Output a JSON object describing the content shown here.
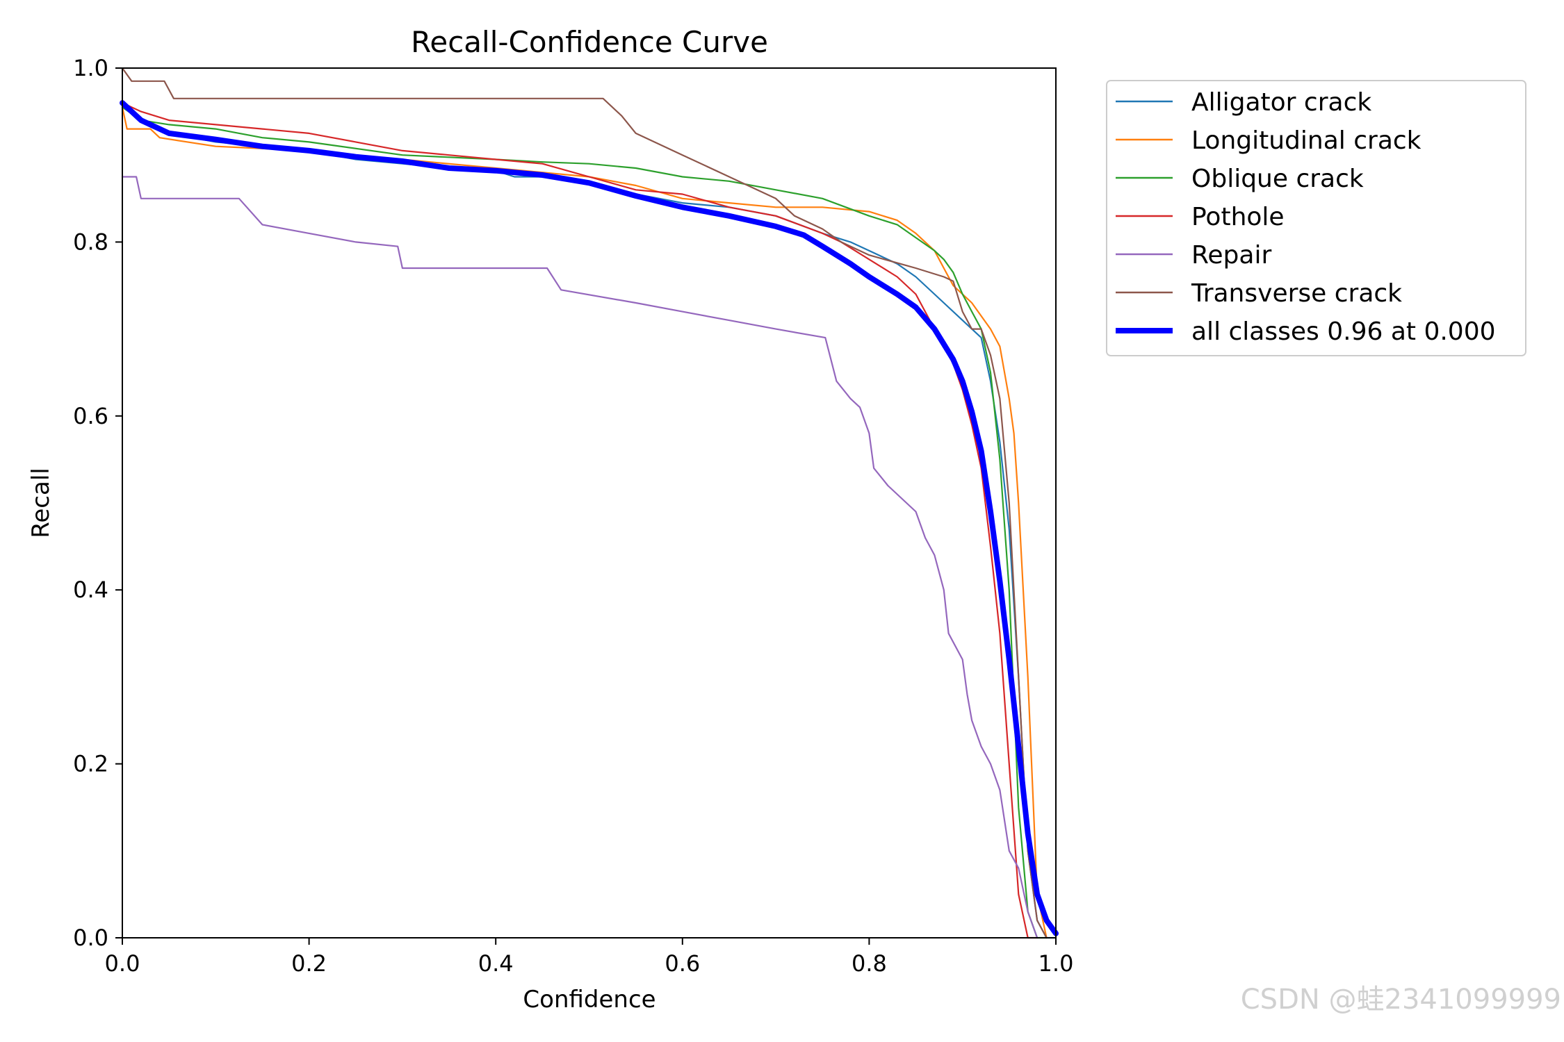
{
  "chart_data": {
    "type": "line",
    "title": "Recall-Confidence Curve",
    "xlabel": "Confidence",
    "ylabel": "Recall",
    "xlim": [
      0,
      1
    ],
    "ylim": [
      0,
      1
    ],
    "xticks": [
      "0.0",
      "0.2",
      "0.4",
      "0.6",
      "0.8",
      "1.0"
    ],
    "yticks": [
      "0.0",
      "0.2",
      "0.4",
      "0.6",
      "0.8",
      "1.0"
    ],
    "legend_position": "outside-top-right",
    "grid": false,
    "series": [
      {
        "name": "Alligator crack",
        "color": "#1f77b4",
        "bold": false,
        "x": [
          0,
          0.02,
          0.05,
          0.1,
          0.15,
          0.2,
          0.25,
          0.3,
          0.35,
          0.4,
          0.42,
          0.45,
          0.5,
          0.55,
          0.6,
          0.65,
          0.7,
          0.75,
          0.78,
          0.8,
          0.83,
          0.85,
          0.87,
          0.88,
          0.9,
          0.92,
          0.93,
          0.94,
          0.95,
          0.96,
          0.97,
          0.98,
          0.99,
          1.0
        ],
        "y": [
          0.96,
          0.94,
          0.925,
          0.915,
          0.91,
          0.905,
          0.895,
          0.89,
          0.885,
          0.882,
          0.875,
          0.875,
          0.87,
          0.855,
          0.845,
          0.84,
          0.83,
          0.81,
          0.8,
          0.79,
          0.775,
          0.76,
          0.74,
          0.73,
          0.71,
          0.69,
          0.64,
          0.57,
          0.47,
          0.3,
          0.1,
          0.02,
          0.0,
          0.0
        ]
      },
      {
        "name": "Longitudinal crack",
        "color": "#ff7f0e",
        "bold": false,
        "x": [
          0,
          0.005,
          0.03,
          0.04,
          0.1,
          0.2,
          0.3,
          0.4,
          0.45,
          0.5,
          0.55,
          0.6,
          0.65,
          0.7,
          0.75,
          0.8,
          0.83,
          0.85,
          0.87,
          0.88,
          0.89,
          0.9,
          0.91,
          0.93,
          0.94,
          0.95,
          0.955,
          0.96,
          0.97,
          0.98,
          0.99
        ],
        "y": [
          0.955,
          0.93,
          0.93,
          0.92,
          0.91,
          0.905,
          0.895,
          0.885,
          0.88,
          0.875,
          0.865,
          0.85,
          0.845,
          0.84,
          0.84,
          0.835,
          0.825,
          0.81,
          0.79,
          0.77,
          0.75,
          0.74,
          0.73,
          0.7,
          0.68,
          0.62,
          0.58,
          0.5,
          0.3,
          0.05,
          0.0
        ]
      },
      {
        "name": "Oblique crack",
        "color": "#2ca02c",
        "bold": false,
        "x": [
          0,
          0.02,
          0.05,
          0.1,
          0.15,
          0.2,
          0.3,
          0.4,
          0.45,
          0.5,
          0.55,
          0.6,
          0.65,
          0.7,
          0.75,
          0.8,
          0.83,
          0.85,
          0.87,
          0.88,
          0.89,
          0.9,
          0.91,
          0.92,
          0.93,
          0.94,
          0.95,
          0.96,
          0.97,
          0.98,
          0.99
        ],
        "y": [
          0.955,
          0.94,
          0.935,
          0.93,
          0.92,
          0.915,
          0.9,
          0.895,
          0.892,
          0.89,
          0.885,
          0.875,
          0.87,
          0.86,
          0.85,
          0.83,
          0.82,
          0.805,
          0.79,
          0.78,
          0.765,
          0.74,
          0.72,
          0.7,
          0.65,
          0.55,
          0.4,
          0.15,
          0.03,
          0.0,
          0.0
        ]
      },
      {
        "name": "Pothole",
        "color": "#d62728",
        "bold": false,
        "x": [
          0,
          0.02,
          0.05,
          0.1,
          0.15,
          0.2,
          0.25,
          0.3,
          0.35,
          0.4,
          0.45,
          0.5,
          0.55,
          0.6,
          0.65,
          0.7,
          0.75,
          0.77,
          0.8,
          0.83,
          0.85,
          0.87,
          0.88,
          0.89,
          0.9,
          0.91,
          0.92,
          0.93,
          0.94,
          0.95,
          0.96,
          0.97,
          0.98
        ],
        "y": [
          0.96,
          0.95,
          0.94,
          0.935,
          0.93,
          0.925,
          0.915,
          0.905,
          0.9,
          0.895,
          0.89,
          0.875,
          0.86,
          0.855,
          0.84,
          0.83,
          0.81,
          0.8,
          0.78,
          0.76,
          0.74,
          0.7,
          0.68,
          0.66,
          0.63,
          0.59,
          0.54,
          0.45,
          0.35,
          0.2,
          0.05,
          0.0,
          0.0
        ]
      },
      {
        "name": "Repair",
        "color": "#9467bd",
        "bold": false,
        "x": [
          0,
          0.005,
          0.015,
          0.02,
          0.05,
          0.1,
          0.125,
          0.15,
          0.2,
          0.25,
          0.295,
          0.3,
          0.35,
          0.4,
          0.455,
          0.47,
          0.55,
          0.6,
          0.65,
          0.7,
          0.753,
          0.765,
          0.78,
          0.79,
          0.8,
          0.805,
          0.82,
          0.84,
          0.85,
          0.86,
          0.87,
          0.88,
          0.885,
          0.9,
          0.905,
          0.91,
          0.92,
          0.93,
          0.94,
          0.95,
          0.96,
          0.97,
          0.98
        ],
        "y": [
          0.875,
          0.875,
          0.875,
          0.85,
          0.85,
          0.85,
          0.85,
          0.82,
          0.81,
          0.8,
          0.795,
          0.77,
          0.77,
          0.77,
          0.77,
          0.745,
          0.73,
          0.72,
          0.71,
          0.7,
          0.69,
          0.64,
          0.62,
          0.61,
          0.58,
          0.54,
          0.52,
          0.5,
          0.49,
          0.46,
          0.44,
          0.4,
          0.35,
          0.32,
          0.28,
          0.25,
          0.22,
          0.2,
          0.17,
          0.1,
          0.08,
          0.03,
          0.0
        ]
      },
      {
        "name": "Transverse crack",
        "color": "#8c564b",
        "bold": false,
        "x": [
          0,
          0.01,
          0.045,
          0.055,
          0.1,
          0.2,
          0.3,
          0.4,
          0.45,
          0.5,
          0.515,
          0.535,
          0.55,
          0.6,
          0.65,
          0.7,
          0.72,
          0.75,
          0.77,
          0.8,
          0.85,
          0.88,
          0.89,
          0.9,
          0.91,
          0.92,
          0.93,
          0.94,
          0.95,
          0.96,
          0.97,
          0.98,
          0.99
        ],
        "y": [
          1.0,
          0.985,
          0.985,
          0.965,
          0.965,
          0.965,
          0.965,
          0.965,
          0.965,
          0.965,
          0.965,
          0.945,
          0.925,
          0.9,
          0.875,
          0.85,
          0.83,
          0.815,
          0.8,
          0.785,
          0.77,
          0.76,
          0.755,
          0.72,
          0.7,
          0.7,
          0.67,
          0.62,
          0.5,
          0.3,
          0.1,
          0.02,
          0.0
        ]
      },
      {
        "name": "all classes 0.96 at 0.000",
        "color": "#0000ff",
        "bold": true,
        "x": [
          0,
          0.02,
          0.05,
          0.1,
          0.15,
          0.2,
          0.25,
          0.3,
          0.35,
          0.4,
          0.45,
          0.5,
          0.55,
          0.6,
          0.65,
          0.7,
          0.73,
          0.75,
          0.78,
          0.8,
          0.83,
          0.85,
          0.87,
          0.89,
          0.9,
          0.91,
          0.92,
          0.93,
          0.94,
          0.95,
          0.96,
          0.97,
          0.98,
          0.99,
          1.0
        ],
        "y": [
          0.96,
          0.94,
          0.925,
          0.918,
          0.91,
          0.905,
          0.898,
          0.893,
          0.885,
          0.882,
          0.877,
          0.868,
          0.853,
          0.84,
          0.83,
          0.818,
          0.808,
          0.795,
          0.775,
          0.76,
          0.74,
          0.725,
          0.7,
          0.665,
          0.64,
          0.605,
          0.56,
          0.49,
          0.41,
          0.32,
          0.22,
          0.12,
          0.05,
          0.02,
          0.005
        ]
      }
    ]
  },
  "watermark": "CSDN @蛙2341099999"
}
